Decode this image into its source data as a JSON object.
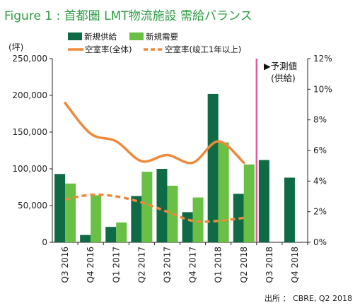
{
  "title": "Figure 1 : 首都圏 LMT物流施設 需給バランス",
  "source": "出所 ： CBRE, Q2 2018",
  "annotation": {
    "line1": "▶予測値",
    "line2": "(供給)"
  },
  "chart_data": {
    "type": "bar",
    "categories": [
      "Q3 2016",
      "Q4 2016",
      "Q1 2017",
      "Q2 2017",
      "Q3 2017",
      "Q4 2017",
      "Q1 2018",
      "Q2 2018",
      "Q3 2018",
      "Q4 2018"
    ],
    "ylabel": "(坪)",
    "ylim": [
      0,
      250000
    ],
    "yticks": [
      0,
      50000,
      100000,
      150000,
      200000,
      250000
    ],
    "ytick_labels": [
      "0",
      "50,000",
      "100,000",
      "150,000",
      "200,000",
      "250,000"
    ],
    "y2lim": [
      0,
      12
    ],
    "y2ticks": [
      0,
      2,
      4,
      6,
      8,
      10,
      12
    ],
    "y2tick_labels": [
      "0%",
      "2%",
      "4%",
      "6%",
      "8%",
      "10%",
      "12%"
    ],
    "grid": false,
    "forecast_start": "Q3 2018",
    "series": [
      {
        "name": "新規供給",
        "kind": "bar",
        "color": "#0e6b45",
        "values": [
          93000,
          10000,
          21000,
          63000,
          100000,
          41000,
          202000,
          66000,
          112000,
          88000
        ]
      },
      {
        "name": "新規需要",
        "kind": "bar",
        "color": "#6abf45",
        "values": [
          80000,
          64000,
          27000,
          96000,
          77000,
          61000,
          136000,
          106000,
          null,
          null
        ]
      },
      {
        "name": "空室率(全体)",
        "kind": "line",
        "axis": "right",
        "color": "#ee8a3b",
        "values": [
          9.1,
          7.1,
          6.6,
          5.3,
          5.7,
          5.2,
          6.6,
          5.2,
          null,
          null
        ]
      },
      {
        "name": "空室率(竣工1年以上)",
        "kind": "dashed-line",
        "axis": "right",
        "color": "#ee8a3b",
        "values": [
          2.8,
          3.1,
          3.0,
          2.6,
          2.0,
          1.4,
          1.4,
          1.6,
          null,
          null
        ]
      }
    ]
  }
}
